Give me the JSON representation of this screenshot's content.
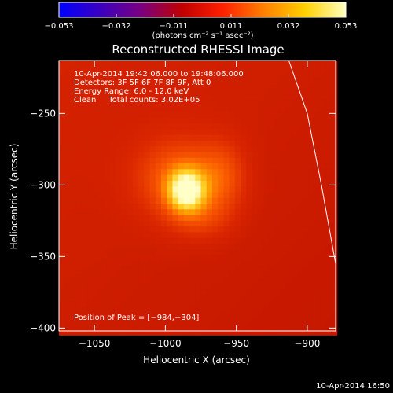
{
  "chart_data": {
    "type": "heatmap",
    "title": "Reconstructed RHESSI Image",
    "xlabel": "Heliocentric X (arcsec)",
    "ylabel": "Heliocentric Y (arcsec)",
    "xlim": [
      -1075,
      -880
    ],
    "ylim": [
      -402,
      -213
    ],
    "x_ticks": [
      {
        "value": -1050,
        "label": "−1050"
      },
      {
        "value": -1000,
        "label": "−1000"
      },
      {
        "value": -950,
        "label": "−950"
      },
      {
        "value": -900,
        "label": "−900"
      }
    ],
    "y_ticks": [
      {
        "value": -250,
        "label": "−250"
      },
      {
        "value": -300,
        "label": "−300"
      },
      {
        "value": -350,
        "label": "−350"
      },
      {
        "value": -400,
        "label": "−400"
      }
    ],
    "colorbar": {
      "range": [
        -0.053,
        0.053
      ],
      "tick_labels": [
        "−0.053",
        "−0.032",
        "−0.011",
        "0.011",
        "0.032",
        "0.053"
      ],
      "unit_label": "(photons cm⁻² s⁻¹ asec⁻²)",
      "colors": [
        "#0000ff",
        "#3a00c0",
        "#7a0080",
        "#c00000",
        "#ff2000",
        "#ff8000",
        "#ffd000",
        "#ffffc0"
      ]
    },
    "annotations": [
      "10-Apr-2014 19:42:06.000 to 19:48:06.000",
      "Detectors: 3F 5F 6F 7F 8F 9F, Att 0",
      "Energy Range: 6.0 - 12.0 keV",
      "Clean     Total counts: 3.02E+05"
    ],
    "peak_label": "Position of Peak = [−984,−304]",
    "peak": {
      "x": -984,
      "y": -304
    },
    "limb": [
      [
        -913,
        -213
      ],
      [
        -900,
        -250
      ],
      [
        -890,
        -300
      ],
      [
        -880,
        -355
      ]
    ],
    "background_level": 0.02,
    "sources": [
      {
        "x": -985,
        "y": -304,
        "sigma_x": 9,
        "sigma_y": 10,
        "amp": 0.03
      },
      {
        "x": -990,
        "y": -296,
        "sigma_x": 22,
        "sigma_y": 20,
        "amp": 0.012
      },
      {
        "x": -960,
        "y": -295,
        "sigma_x": 12,
        "sigma_y": 18,
        "amp": 0.008
      },
      {
        "x": -975,
        "y": -325,
        "sigma_x": 15,
        "sigma_y": 10,
        "amp": 0.005
      }
    ]
  },
  "footer_timestamp": "10-Apr-2014 16:50"
}
